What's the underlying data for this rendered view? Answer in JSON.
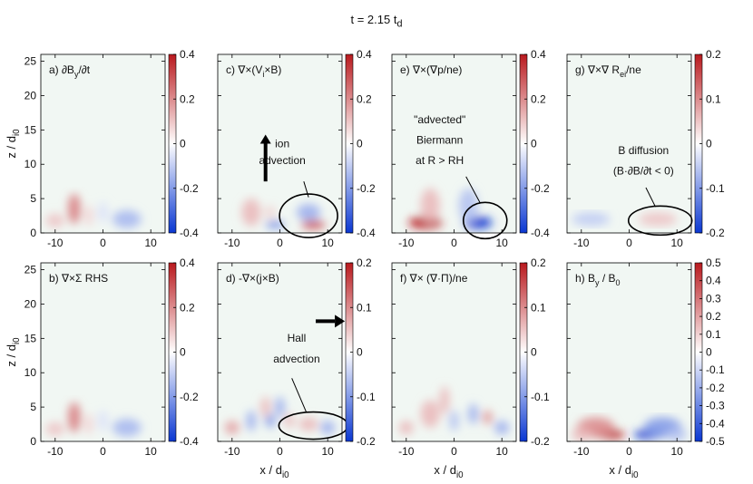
{
  "figure": {
    "title_main": "t = 2.15 t",
    "title_sub": "d"
  },
  "chart_data": [
    {
      "id": "a",
      "type": "heatmap",
      "label_main": "a) ∂B",
      "label_sub": "y",
      "label_tail": "/∂t",
      "xlim": [
        -13,
        13
      ],
      "ylim": [
        0,
        26
      ],
      "xticks": [
        -10,
        0,
        10
      ],
      "yticks": [
        0,
        5,
        10,
        15,
        20,
        25
      ],
      "xlabel": "",
      "ylabel": "z / d",
      "ylabel_sub": "i0",
      "colorbar": {
        "range": [
          -0.4,
          0.4
        ],
        "ticks": [
          "0.4",
          "0.2",
          "0",
          "-0.2",
          "-0.4"
        ]
      },
      "features": [
        {
          "x": -6,
          "z": 3.5,
          "sx": 1.3,
          "sz": 2.2,
          "v": 0.55
        },
        {
          "x": -10,
          "z": 1.8,
          "sx": 2,
          "sz": 1,
          "v": 0.25
        },
        {
          "x": -3,
          "z": 2.5,
          "sx": 1,
          "sz": 1.5,
          "v": 0.18
        },
        {
          "x": 5,
          "z": 2,
          "sx": 3,
          "sz": 1.3,
          "v": -0.35
        },
        {
          "x": 0,
          "z": 3,
          "sx": 1,
          "sz": 1.5,
          "v": -0.15
        }
      ],
      "annotations": []
    },
    {
      "id": "c",
      "type": "heatmap",
      "label_main": "c) ∇×(V",
      "label_sub": "i",
      "label_tail": "×B)",
      "xlim": [
        -13,
        13
      ],
      "ylim": [
        0,
        26
      ],
      "xticks": [
        -10,
        0,
        10
      ],
      "yticks": [
        0,
        5,
        10,
        15,
        20,
        25
      ],
      "colorbar": {
        "range": [
          -0.4,
          0.4
        ],
        "ticks": [
          "0.4",
          "0.2",
          "0",
          "-0.2",
          "-0.4"
        ]
      },
      "features": [
        {
          "x": -6,
          "z": 3,
          "sx": 2,
          "sz": 2,
          "v": 0.3
        },
        {
          "x": 7,
          "z": 1.2,
          "sx": 2.5,
          "sz": 0.6,
          "v": 0.8
        },
        {
          "x": -1,
          "z": 1.2,
          "sx": 2,
          "sz": 0.5,
          "v": -0.6
        },
        {
          "x": 6,
          "z": 3,
          "sx": 2.5,
          "sz": 1.2,
          "v": -0.4
        },
        {
          "x": -2,
          "z": 3,
          "sx": 1,
          "sz": 1,
          "v": 0.2
        }
      ],
      "annotations": [
        {
          "text": "ion",
          "x": 0.5,
          "z": 12.5
        },
        {
          "text": "advection",
          "x": 0.5,
          "z": 10
        }
      ]
    },
    {
      "id": "e",
      "type": "heatmap",
      "label_main": "e) ∇×(∇p/ne)",
      "label_sub": "",
      "label_tail": "",
      "xlim": [
        -13,
        13
      ],
      "ylim": [
        0,
        26
      ],
      "xticks": [
        -10,
        0,
        10
      ],
      "yticks": [
        0,
        5,
        10,
        15,
        20,
        25
      ],
      "colorbar": {
        "range": [
          -0.4,
          0.4
        ],
        "ticks": [
          "0.4",
          "0.2",
          "0",
          "-0.2",
          "-0.4"
        ]
      },
      "features": [
        {
          "x": -6,
          "z": 1.5,
          "sx": 3.5,
          "sz": 0.9,
          "v": 1
        },
        {
          "x": 5,
          "z": 1.5,
          "sx": 3,
          "sz": 0.9,
          "v": -1
        },
        {
          "x": -5,
          "z": 4,
          "sx": 2,
          "sz": 2.5,
          "v": 0.3
        },
        {
          "x": 3,
          "z": 4,
          "sx": 2,
          "sz": 2.5,
          "v": -0.3
        }
      ],
      "annotations": [
        {
          "text": "\"advected\"",
          "x": -3,
          "z": 16
        },
        {
          "text": "Biermann",
          "x": -3,
          "z": 13
        },
        {
          "text": "at R > RH",
          "x": -3,
          "z": 10
        }
      ]
    },
    {
      "id": "g",
      "type": "heatmap",
      "label_main": "g) ∇×∇ R",
      "label_sub": "ei",
      "label_tail": "/ne",
      "xlim": [
        -13,
        13
      ],
      "ylim": [
        0,
        26
      ],
      "xticks": [
        -10,
        0,
        10
      ],
      "yticks": [
        0,
        5,
        10,
        15,
        20,
        25
      ],
      "colorbar": {
        "range": [
          -0.2,
          0.2
        ],
        "ticks": [
          "0.2",
          "0.1",
          "0",
          "-0.1",
          "-0.2"
        ]
      },
      "features": [
        {
          "x": -8,
          "z": 2,
          "sx": 4,
          "sz": 1,
          "v": -0.25
        },
        {
          "x": 6,
          "z": 2,
          "sx": 4,
          "sz": 1,
          "v": 0.25
        }
      ],
      "annotations": [
        {
          "text": "B diffusion",
          "x": 3,
          "z": 11.5
        },
        {
          "text": "(B·∂B/∂t < 0)",
          "x": 3,
          "z": 8.5
        }
      ]
    },
    {
      "id": "b",
      "type": "heatmap",
      "label_main": "b) ∇×Σ RHS",
      "label_sub": "",
      "label_tail": "",
      "xlim": [
        -13,
        13
      ],
      "ylim": [
        0,
        26
      ],
      "xticks": [
        -10,
        0,
        10
      ],
      "yticks": [
        0,
        5,
        10,
        15,
        20,
        25
      ],
      "xlabel": "",
      "ylabel": "z / d",
      "ylabel_sub": "i0",
      "colorbar": {
        "range": [
          -0.4,
          0.4
        ],
        "ticks": [
          "0.4",
          "0.2",
          "0",
          "-0.2",
          "-0.4"
        ]
      },
      "features": [
        {
          "x": -6,
          "z": 3.5,
          "sx": 1.3,
          "sz": 2.2,
          "v": 0.55
        },
        {
          "x": -10,
          "z": 1.8,
          "sx": 2,
          "sz": 1,
          "v": 0.25
        },
        {
          "x": -3,
          "z": 2.5,
          "sx": 1,
          "sz": 1.5,
          "v": 0.18
        },
        {
          "x": 5,
          "z": 2,
          "sx": 3,
          "sz": 1.3,
          "v": -0.35
        },
        {
          "x": 0,
          "z": 3,
          "sx": 1,
          "sz": 1.5,
          "v": -0.15
        }
      ],
      "annotations": []
    },
    {
      "id": "d",
      "type": "heatmap",
      "label_main": "d) -∇×(j×B)",
      "label_sub": "",
      "label_tail": "",
      "xlim": [
        -13,
        13
      ],
      "ylim": [
        0,
        26
      ],
      "xticks": [
        -10,
        0,
        10
      ],
      "yticks": [
        0,
        5,
        10,
        15,
        20,
        25
      ],
      "xlabel": "x / d",
      "xlabel_sub": "i0",
      "colorbar": {
        "range": [
          -0.2,
          0.2
        ],
        "ticks": [
          "0.2",
          "0.1",
          "0",
          "-0.1",
          "-0.2"
        ]
      },
      "features": [
        {
          "x": -10,
          "z": 2,
          "sx": 1.5,
          "sz": 1,
          "v": 0.4
        },
        {
          "x": -6,
          "z": 3,
          "sx": 1,
          "sz": 1.5,
          "v": -0.4
        },
        {
          "x": -3,
          "z": 5,
          "sx": 1,
          "sz": 1.5,
          "v": 0.3
        },
        {
          "x": -2,
          "z": 3,
          "sx": 1,
          "sz": 1,
          "v": -0.5
        },
        {
          "x": 0,
          "z": 5,
          "sx": 1,
          "sz": 1.5,
          "v": -0.4
        },
        {
          "x": 2,
          "z": 3,
          "sx": 1,
          "sz": 1,
          "v": 0.3
        },
        {
          "x": 6,
          "z": 2.5,
          "sx": 2,
          "sz": 1,
          "v": 0.3
        },
        {
          "x": 10,
          "z": 2,
          "sx": 1.5,
          "sz": 1,
          "v": -0.4
        }
      ],
      "annotations": [
        {
          "text": "Hall",
          "x": 3.5,
          "z": 14.5
        },
        {
          "text": "advection",
          "x": 3.5,
          "z": 11.5
        }
      ]
    },
    {
      "id": "f",
      "type": "heatmap",
      "label_main": "f) ∇× (∇·Π)/ne",
      "label_sub": "",
      "label_tail": "",
      "xlim": [
        -13,
        13
      ],
      "ylim": [
        0,
        26
      ],
      "xticks": [
        -10,
        0,
        10
      ],
      "yticks": [
        0,
        5,
        10,
        15,
        20,
        25
      ],
      "xlabel": "x / d",
      "xlabel_sub": "i0",
      "colorbar": {
        "range": [
          -0.2,
          0.2
        ],
        "ticks": [
          "0.2",
          "0.1",
          "0",
          "-0.1",
          "-0.2"
        ]
      },
      "features": [
        {
          "x": -5,
          "z": 4,
          "sx": 2,
          "sz": 2,
          "v": 0.3
        },
        {
          "x": -2,
          "z": 6,
          "sx": 1,
          "sz": 2,
          "v": 0.3
        },
        {
          "x": 0,
          "z": 3,
          "sx": 1,
          "sz": 1.5,
          "v": -0.3
        },
        {
          "x": 4,
          "z": 4,
          "sx": 1,
          "sz": 1.5,
          "v": -0.4
        },
        {
          "x": 7,
          "z": 3.5,
          "sx": 1,
          "sz": 1,
          "v": 0.45
        },
        {
          "x": 10,
          "z": 2,
          "sx": 1.5,
          "sz": 1,
          "v": -0.4
        },
        {
          "x": -10,
          "z": 2,
          "sx": 1.5,
          "sz": 1,
          "v": 0.3
        }
      ],
      "annotations": []
    },
    {
      "id": "h",
      "type": "heatmap",
      "label_main": "h) B",
      "label_sub": "y",
      "label_tail": " / B",
      "label_sub2": "0",
      "xlim": [
        -13,
        13
      ],
      "ylim": [
        0,
        26
      ],
      "xticks": [
        -10,
        0,
        10
      ],
      "yticks": [
        0,
        5,
        10,
        15,
        20,
        25
      ],
      "xlabel": "x / d",
      "xlabel_sub": "i0",
      "colorbar": {
        "range": [
          -0.5,
          0.5
        ],
        "ticks": [
          "0.5",
          "0.4",
          "0.3",
          "0.2",
          "0.1",
          "0",
          "-0.1",
          "-0.2",
          "-0.3",
          "-0.4",
          "-0.5"
        ]
      },
      "features": [
        {
          "x": -4,
          "z": 1,
          "sx": 3,
          "sz": 0.7,
          "v": 1
        },
        {
          "x": -7,
          "z": 2,
          "sx": 4,
          "sz": 1.5,
          "v": 0.5
        },
        {
          "x": 4,
          "z": 1,
          "sx": 3,
          "sz": 0.7,
          "v": -1
        },
        {
          "x": 7,
          "z": 2,
          "sx": 4,
          "sz": 1.5,
          "v": -0.5
        },
        {
          "x": -10,
          "z": 1,
          "sx": 2,
          "sz": 1,
          "v": 0.3
        },
        {
          "x": 10,
          "z": 1,
          "sx": 2,
          "sz": 1,
          "v": -0.3
        }
      ],
      "annotations": []
    }
  ]
}
